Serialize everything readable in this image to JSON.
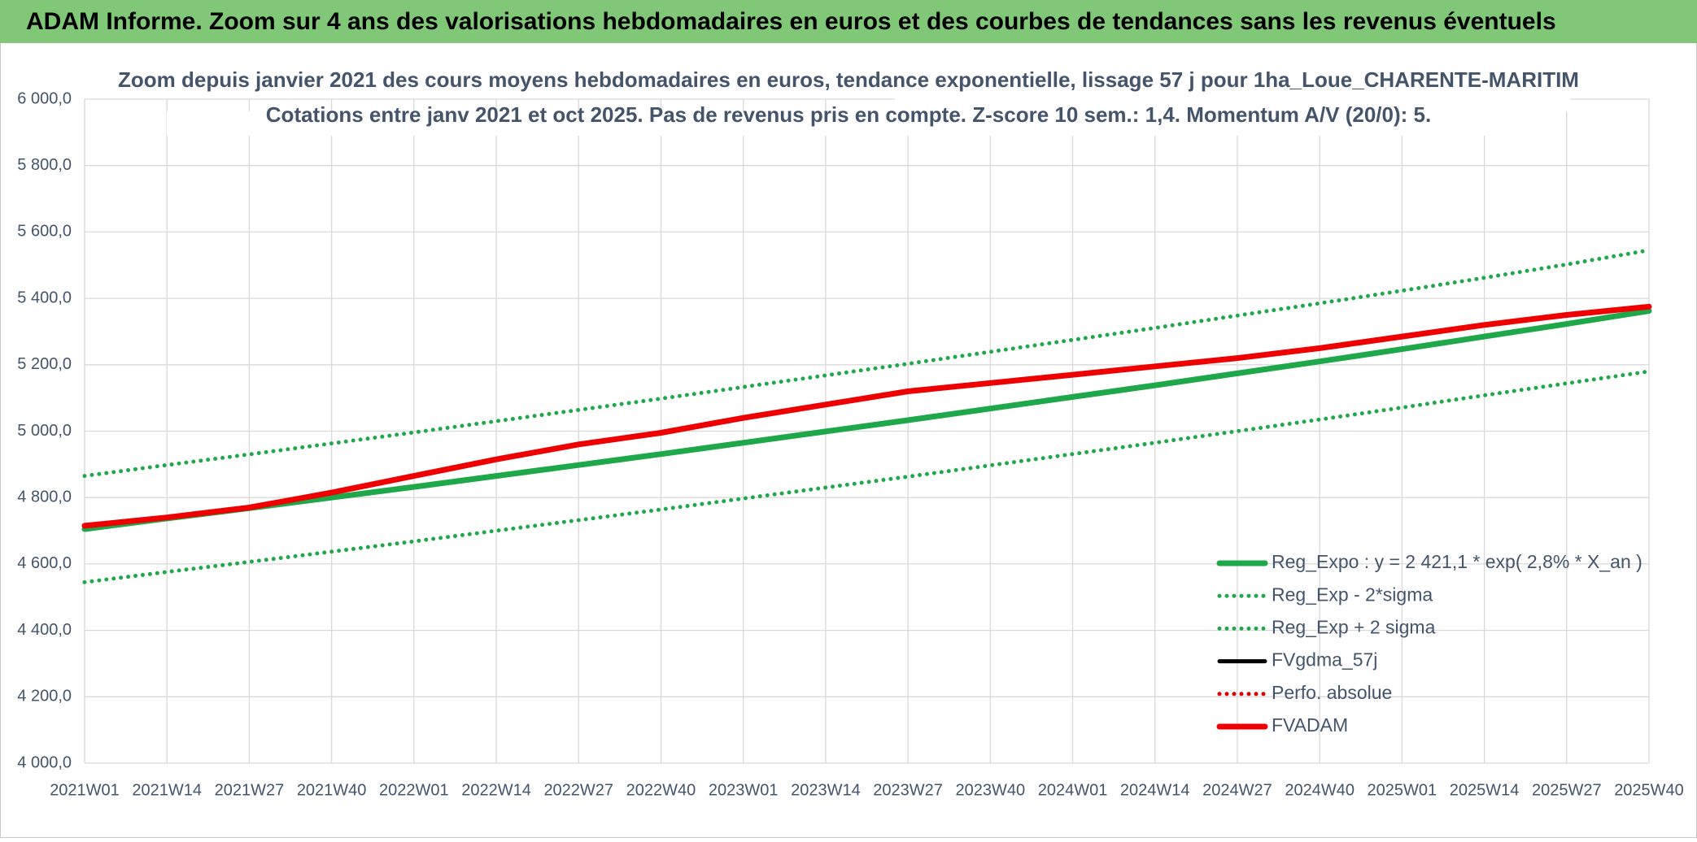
{
  "header": {
    "title": "ADAM Informe. Zoom sur 4 ans des valorisations hebdomadaires en euros et des courbes de tendances sans les revenus éventuels"
  },
  "chart_data": {
    "type": "line",
    "title": "Zoom depuis janvier 2021 des cours moyens hebdomadaires en euros, tendance exponentielle, lissage 57 j pour 1ha_Loue_CHARENTE-MARITIM",
    "subtitle": "Cotations entre janv 2021 et oct 2025. Pas de revenus pris en compte. Z-score 10 sem.: 1,4. Momentum A/V (20/0): 5.",
    "categories": [
      "2021W01",
      "2021W14",
      "2021W27",
      "2021W40",
      "2022W01",
      "2022W14",
      "2022W27",
      "2022W40",
      "2023W01",
      "2023W14",
      "2023W27",
      "2023W40",
      "2024W01",
      "2024W14",
      "2024W27",
      "2024W40",
      "2025W01",
      "2025W14",
      "2025W27",
      "2025W40"
    ],
    "series": [
      {
        "name": "Reg_Expo : y = 2 421,1 * exp( 2,8% *  X_an )",
        "color": "#1fa84a",
        "line_style": "solid",
        "values": [
          4705,
          4737,
          4768,
          4800,
          4832,
          4865,
          4898,
          4931,
          4965,
          4999,
          5033,
          5068,
          5103,
          5138,
          5174,
          5210,
          5247,
          5285,
          5323,
          5362
        ]
      },
      {
        "name": "Reg_Exp - 2*sigma",
        "color": "#1fa84a",
        "line_style": "dotted",
        "values": [
          4545,
          4576,
          4606,
          4637,
          4668,
          4700,
          4732,
          4764,
          4797,
          4830,
          4863,
          4897,
          4931,
          4965,
          5000,
          5035,
          5071,
          5108,
          5144,
          5180
        ]
      },
      {
        "name": "Reg_Exp + 2 sigma",
        "color": "#1fa84a",
        "line_style": "dotted",
        "values": [
          4865,
          4898,
          4930,
          4963,
          4996,
          5030,
          5064,
          5098,
          5133,
          5168,
          5203,
          5239,
          5275,
          5311,
          5348,
          5385,
          5423,
          5462,
          5502,
          5545
        ]
      },
      {
        "name": "FVgdma_57j",
        "color": "#000000",
        "line_style": "solid",
        "values": [
          4715,
          4740,
          4770,
          4815,
          4865,
          4915,
          4960,
          4995,
          5040,
          5080,
          5120,
          5145,
          5170,
          5195,
          5220,
          5250,
          5285,
          5320,
          5350,
          5375
        ]
      },
      {
        "name": "Perfo. absolue",
        "color": "#e00000",
        "line_style": "dotted",
        "values": [
          4715,
          4740,
          4770,
          4815,
          4865,
          4915,
          4960,
          4995,
          5040,
          5080,
          5120,
          5145,
          5170,
          5195,
          5220,
          5250,
          5285,
          5320,
          5350,
          5375
        ]
      },
      {
        "name": "FVADAM",
        "color": "#ee0000",
        "line_style": "solid",
        "values": [
          4715,
          4740,
          4770,
          4815,
          4865,
          4915,
          4960,
          4995,
          5040,
          5080,
          5120,
          5145,
          5170,
          5195,
          5220,
          5250,
          5285,
          5320,
          5350,
          5375
        ]
      }
    ],
    "ylim": [
      4000,
      6000
    ],
    "yticks": [
      {
        "value": 4000,
        "label": "4 000,0"
      },
      {
        "value": 4200,
        "label": "4 200,0"
      },
      {
        "value": 4400,
        "label": "4 400,0"
      },
      {
        "value": 4600,
        "label": "4 600,0"
      },
      {
        "value": 4800,
        "label": "4 800,0"
      },
      {
        "value": 5000,
        "label": "5 000,0"
      },
      {
        "value": 5200,
        "label": "5 200,0"
      },
      {
        "value": 5400,
        "label": "5 400,0"
      },
      {
        "value": 5600,
        "label": "5 600,0"
      },
      {
        "value": 5800,
        "label": "5 800,0"
      },
      {
        "value": 6000,
        "label": "6 000,0"
      }
    ],
    "grid": true
  }
}
